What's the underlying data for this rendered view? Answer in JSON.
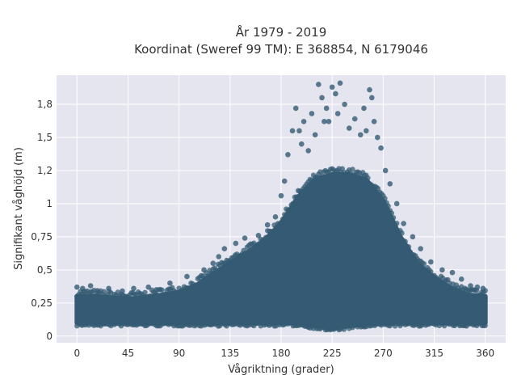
{
  "chart_data": {
    "type": "scatter",
    "title_lines": [
      "År 1979 - 2019",
      "Koordinat (Sweref 99 TM): E 368854, N 6179046"
    ],
    "xlabel": "Vågriktning (grader)",
    "ylabel": "Signifikant våghöjd (m)",
    "xlim": [
      -18,
      378
    ],
    "ylim": [
      -0.05,
      1.97
    ],
    "x_ticks": [
      0,
      45,
      90,
      135,
      180,
      225,
      270,
      315,
      360
    ],
    "x_tick_labels": [
      "0",
      "45",
      "90",
      "135",
      "180",
      "225",
      "270",
      "315",
      "360"
    ],
    "y_ticks": [
      0,
      0.25,
      0.5,
      0.75,
      1,
      1.25,
      1.5,
      1.75
    ],
    "y_tick_labels": [
      "0",
      "0,25",
      "0,5",
      "0,75",
      "1",
      "1,2",
      "1,5",
      "1,8"
    ],
    "grid": true,
    "marker_color": "#345b73",
    "background_color": "#e5e5ef",
    "envelope": {
      "description": "upper/lower extent of the dense point cloud by direction",
      "direction": [
        0,
        15,
        30,
        45,
        60,
        75,
        90,
        105,
        120,
        135,
        150,
        165,
        180,
        195,
        210,
        225,
        240,
        255,
        270,
        285,
        300,
        315,
        330,
        345,
        360
      ],
      "upper": [
        0.3,
        0.3,
        0.29,
        0.28,
        0.29,
        0.31,
        0.33,
        0.38,
        0.47,
        0.55,
        0.63,
        0.72,
        0.85,
        1.05,
        1.18,
        1.22,
        1.22,
        1.18,
        1.02,
        0.75,
        0.55,
        0.44,
        0.36,
        0.31,
        0.3
      ],
      "lower": [
        0.1,
        0.1,
        0.1,
        0.1,
        0.1,
        0.1,
        0.1,
        0.1,
        0.1,
        0.1,
        0.1,
        0.1,
        0.1,
        0.1,
        0.08,
        0.06,
        0.08,
        0.09,
        0.1,
        0.1,
        0.1,
        0.1,
        0.1,
        0.1,
        0.1
      ]
    },
    "outlier_points": [
      [
        0,
        0.37
      ],
      [
        5,
        0.36
      ],
      [
        12,
        0.38
      ],
      [
        18,
        0.33
      ],
      [
        28,
        0.36
      ],
      [
        40,
        0.34
      ],
      [
        50,
        0.36
      ],
      [
        63,
        0.37
      ],
      [
        70,
        0.35
      ],
      [
        82,
        0.4
      ],
      [
        97,
        0.45
      ],
      [
        112,
        0.5
      ],
      [
        120,
        0.55
      ],
      [
        125,
        0.6
      ],
      [
        130,
        0.66
      ],
      [
        140,
        0.7
      ],
      [
        148,
        0.74
      ],
      [
        160,
        0.76
      ],
      [
        168,
        0.84
      ],
      [
        175,
        0.9
      ],
      [
        180,
        1.06
      ],
      [
        183,
        1.17
      ],
      [
        186,
        1.37
      ],
      [
        190,
        1.55
      ],
      [
        193,
        1.72
      ],
      [
        196,
        1.55
      ],
      [
        198,
        1.45
      ],
      [
        200,
        1.62
      ],
      [
        204,
        1.4
      ],
      [
        207,
        1.68
      ],
      [
        210,
        1.52
      ],
      [
        213,
        1.9
      ],
      [
        216,
        1.8
      ],
      [
        218,
        1.62
      ],
      [
        220,
        1.72
      ],
      [
        222,
        1.62
      ],
      [
        225,
        1.88
      ],
      [
        228,
        1.83
      ],
      [
        230,
        1.68
      ],
      [
        232,
        1.91
      ],
      [
        236,
        1.75
      ],
      [
        240,
        1.57
      ],
      [
        245,
        1.64
      ],
      [
        250,
        1.52
      ],
      [
        253,
        1.72
      ],
      [
        255,
        1.55
      ],
      [
        258,
        1.86
      ],
      [
        260,
        1.8
      ],
      [
        262,
        1.62
      ],
      [
        265,
        1.5
      ],
      [
        268,
        1.42
      ],
      [
        272,
        1.25
      ],
      [
        276,
        1.15
      ],
      [
        282,
        1.0
      ],
      [
        288,
        0.85
      ],
      [
        296,
        0.75
      ],
      [
        303,
        0.66
      ],
      [
        312,
        0.56
      ],
      [
        322,
        0.5
      ],
      [
        331,
        0.48
      ],
      [
        339,
        0.43
      ],
      [
        347,
        0.38
      ],
      [
        353,
        0.37
      ],
      [
        358,
        0.36
      ]
    ]
  }
}
